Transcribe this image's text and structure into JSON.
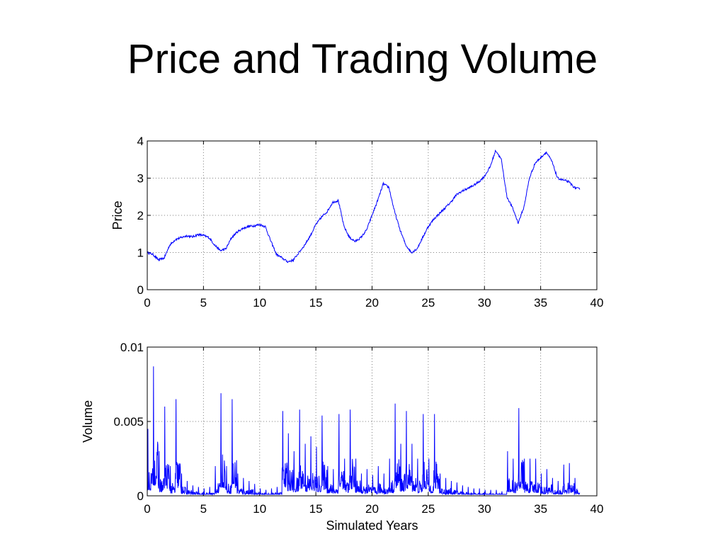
{
  "slide": {
    "title": "Price and Trading Volume"
  },
  "colors": {
    "series": "#0000ff",
    "grid": "#808080",
    "axes": "#000000"
  },
  "chart_data": [
    {
      "type": "line",
      "ylabel": "Price",
      "xlabel": "",
      "xlim": [
        0,
        40
      ],
      "ylim": [
        0,
        4
      ],
      "xticks": [
        "0",
        "5",
        "10",
        "15",
        "20",
        "25",
        "30",
        "35",
        "40"
      ],
      "yticks": [
        "0",
        "1",
        "2",
        "3",
        "4"
      ],
      "grid": true,
      "series": [
        {
          "x": [
            0,
            0.5,
            1,
            1.5,
            2,
            2.5,
            3,
            3.5,
            4,
            4.5,
            5,
            5.5,
            6,
            6.5,
            7,
            7.5,
            8,
            8.5,
            9,
            9.5,
            10,
            10.5,
            11,
            11.5,
            12,
            12.5,
            13,
            13.5,
            14,
            14.5,
            15,
            15.5,
            16,
            16.5,
            17,
            17.5,
            18,
            18.5,
            19,
            19.5,
            20,
            20.5,
            21,
            21.5,
            22,
            22.5,
            23,
            23.5,
            24,
            24.5,
            25,
            25.5,
            26,
            26.5,
            27,
            27.5,
            28,
            28.5,
            29,
            29.5,
            30,
            30.5,
            31,
            31.5,
            32,
            32.5,
            33,
            33.5,
            34,
            34.5,
            35,
            35.5,
            36,
            36.5,
            37,
            37.5,
            38,
            38.5
          ],
          "values": [
            1.0,
            0.95,
            0.8,
            0.85,
            1.2,
            1.35,
            1.4,
            1.45,
            1.42,
            1.48,
            1.46,
            1.4,
            1.2,
            1.05,
            1.1,
            1.4,
            1.55,
            1.65,
            1.7,
            1.72,
            1.75,
            1.7,
            1.3,
            0.95,
            0.85,
            0.75,
            0.8,
            1.0,
            1.2,
            1.45,
            1.75,
            1.95,
            2.1,
            2.35,
            2.4,
            1.7,
            1.4,
            1.3,
            1.4,
            1.6,
            2.0,
            2.4,
            2.85,
            2.75,
            2.1,
            1.6,
            1.2,
            1.0,
            1.1,
            1.4,
            1.7,
            1.9,
            2.05,
            2.2,
            2.35,
            2.55,
            2.65,
            2.72,
            2.8,
            2.9,
            3.05,
            3.3,
            3.75,
            3.5,
            2.5,
            2.2,
            1.8,
            2.2,
            3.0,
            3.4,
            3.55,
            3.7,
            3.45,
            3.0,
            2.95,
            2.9,
            2.75,
            2.7
          ]
        }
      ]
    },
    {
      "type": "line",
      "ylabel": "Volume",
      "xlabel": "Simulated Years",
      "xlim": [
        0,
        40
      ],
      "ylim": [
        0,
        0.01
      ],
      "xticks": [
        "0",
        "5",
        "10",
        "15",
        "20",
        "25",
        "30",
        "35",
        "40"
      ],
      "yticks": [
        "0",
        "0.005",
        "0.01"
      ],
      "grid": true,
      "series": [
        {
          "x": [
            0,
            0.5,
            1,
            1.5,
            2,
            2.5,
            3,
            3.5,
            4,
            4.5,
            5,
            5.5,
            6,
            6.5,
            7,
            7.5,
            8,
            8.5,
            9,
            9.5,
            10,
            10.5,
            11,
            11.5,
            12,
            12.5,
            13,
            13.5,
            14,
            14.5,
            15,
            15.5,
            16,
            16.5,
            17,
            17.5,
            18,
            18.5,
            19,
            19.5,
            20,
            20.5,
            21,
            21.5,
            22,
            22.5,
            23,
            23.5,
            24,
            24.5,
            25,
            25.5,
            26,
            26.5,
            27,
            27.5,
            28,
            28.5,
            29,
            29.5,
            30,
            30.5,
            31,
            31.5,
            32,
            32.5,
            33,
            33.5,
            34,
            34.5,
            35,
            35.5,
            36,
            36.5,
            37,
            37.5,
            38,
            38.5
          ],
          "values": [
            0.0045,
            0.0087,
            0.003,
            0.006,
            0.002,
            0.0065,
            0.0015,
            0.001,
            0.0007,
            0.0006,
            0.0005,
            0.0006,
            0.002,
            0.0069,
            0.002,
            0.0065,
            0.0015,
            0.0012,
            0.001,
            0.0008,
            0.0005,
            0.0004,
            0.0005,
            0.0006,
            0.0057,
            0.0042,
            0.003,
            0.0058,
            0.0035,
            0.004,
            0.0033,
            0.0054,
            0.002,
            0.0018,
            0.0055,
            0.0025,
            0.0058,
            0.0025,
            0.0015,
            0.0018,
            0.0014,
            0.002,
            0.0015,
            0.0025,
            0.0062,
            0.0035,
            0.0057,
            0.0035,
            0.0025,
            0.0055,
            0.0025,
            0.0055,
            0.0015,
            0.0012,
            0.001,
            0.0009,
            0.0007,
            0.0006,
            0.0005,
            0.0005,
            0.0004,
            0.0004,
            0.0004,
            0.0003,
            0.003,
            0.0025,
            0.0059,
            0.0025,
            0.0025,
            0.0025,
            0.0015,
            0.0018,
            0.0012,
            0.001,
            0.0021,
            0.0022,
            0.0012,
            0.0003
          ]
        }
      ]
    }
  ]
}
